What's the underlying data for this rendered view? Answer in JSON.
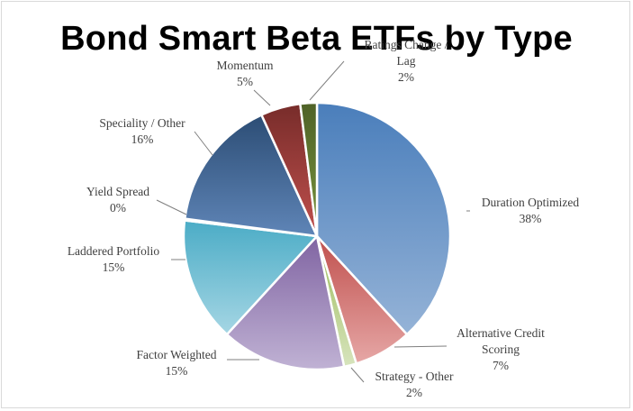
{
  "chart_data": {
    "type": "pie",
    "title": "Bond Smart Beta ETFs by Type",
    "slices": [
      {
        "name": "Duration Optimized",
        "label_lines": [
          "Duration Optimized"
        ],
        "value": 38,
        "value_label": "38%",
        "color_start": "#4a7ebb",
        "color_end": "#95b3d7"
      },
      {
        "name": "Alternative Credit Scoring",
        "label_lines": [
          "Alternative Credit",
          "Scoring"
        ],
        "value": 7,
        "value_label": "7%",
        "color_start": "#c0504d",
        "color_end": "#e6a7a6"
      },
      {
        "name": "Strategy - Other",
        "label_lines": [
          "Strategy  - Other"
        ],
        "value": 1.5,
        "value_label": "2%",
        "color_start": "#9bbb59",
        "color_end": "#d7e4bd"
      },
      {
        "name": "Factor Weighted",
        "label_lines": [
          "Factor Weighted"
        ],
        "value": 15,
        "value_label": "15%",
        "color_start": "#8064a2",
        "color_end": "#c0b2d4"
      },
      {
        "name": "Laddered Portfolio",
        "label_lines": [
          "Laddered Portfolio"
        ],
        "value": 15,
        "value_label": "15%",
        "color_start": "#4bacc6",
        "color_end": "#a5d6e4"
      },
      {
        "name": "Yield Spread",
        "label_lines": [
          "Yield Spread"
        ],
        "value": 0.2,
        "value_label": "0%",
        "color_start": "#f79646",
        "color_end": "#fbc9a0"
      },
      {
        "name": "Speciality / Other",
        "label_lines": [
          "Speciality / Other"
        ],
        "value": 16,
        "value_label": "16%",
        "color_start": "#2c4d75",
        "color_end": "#5f85b7"
      },
      {
        "name": "Momentum",
        "label_lines": [
          "Momentum"
        ],
        "value": 4.8,
        "value_label": "5%",
        "color_start": "#772c2a",
        "color_end": "#c0504d"
      },
      {
        "name": "Ratings Change / Lag",
        "label_lines": [
          "Ratings Change /",
          "Lag"
        ],
        "value": 2,
        "value_label": "2%",
        "color_start": "#4f6228",
        "color_end": "#77933c"
      }
    ]
  }
}
